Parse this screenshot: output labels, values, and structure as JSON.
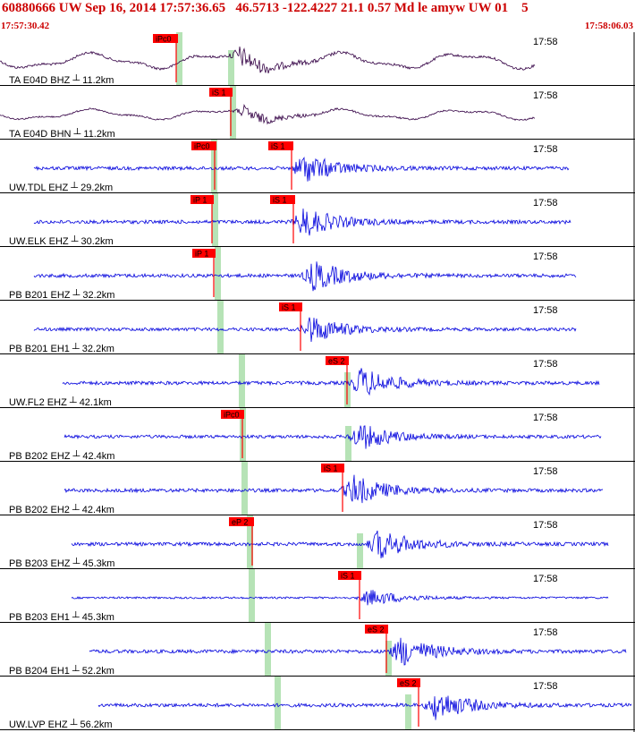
{
  "header": {
    "title": "60880666 UW Sep 16, 2014 17:57:36.65   46.5713 -122.4227 21.1 0.57 Md le amyw UW 01    5",
    "start_time": "17:57:30.42",
    "end_time": "17:58:06.03"
  },
  "colors": {
    "header_text": "#cc0000",
    "pick_flag": "#ff0000",
    "window_band": "#b6e3b6",
    "trace_ta": "#330044",
    "trace_other": "#0000dd"
  },
  "traces": [
    {
      "label": "TA E04D BHZ ┴ 11.2km",
      "time_label": "17:58",
      "picks": [
        "iPc0"
      ],
      "style": "ta"
    },
    {
      "label": "TA E04D BHN ┴ 11.2km",
      "time_label": "17:58",
      "picks": [
        "iS 1"
      ],
      "style": "ta"
    },
    {
      "label": "UW.TDL EHZ ┴ 29.2km",
      "time_label": "17:58",
      "picks": [
        "iPc0",
        "iS 1"
      ],
      "style": "uw"
    },
    {
      "label": "UW.ELK EHZ ┴ 30.2km",
      "time_label": "17:58",
      "picks": [
        "iP 1",
        "iS 1"
      ],
      "style": "uw"
    },
    {
      "label": "PB B201 EHZ ┴ 32.2km",
      "time_label": "17:58",
      "picks": [
        "iP 1"
      ],
      "style": "uw"
    },
    {
      "label": "PB B201 EH1 ┴ 32.2km",
      "time_label": "17:58",
      "picks": [
        "iS 1"
      ],
      "style": "uw"
    },
    {
      "label": "UW.FL2 EHZ ┴ 42.1km",
      "time_label": "17:58",
      "picks": [
        "eS 2"
      ],
      "style": "uw"
    },
    {
      "label": "PB B202 EHZ ┴ 42.4km",
      "time_label": "17:58",
      "picks": [
        "iPc0"
      ],
      "style": "uw"
    },
    {
      "label": "PB B202 EH2 ┴ 42.4km",
      "time_label": "17:58",
      "picks": [
        "iS 1"
      ],
      "style": "uw"
    },
    {
      "label": "PB B203 EHZ ┴ 45.3km",
      "time_label": "17:58",
      "picks": [
        "eP 2"
      ],
      "style": "uw"
    },
    {
      "label": "PB B203 EH1 ┴ 45.3km",
      "time_label": "17:58",
      "picks": [
        "iS 1"
      ],
      "style": "uw"
    },
    {
      "label": "PB B204 EH1 ┴ 52.2km",
      "time_label": "17:58",
      "picks": [
        "eS 2"
      ],
      "style": "uw"
    },
    {
      "label": "UW.LVP EHZ ┴ 56.2km",
      "time_label": "17:58",
      "picks": [
        "eS 2"
      ],
      "style": "uw"
    }
  ]
}
